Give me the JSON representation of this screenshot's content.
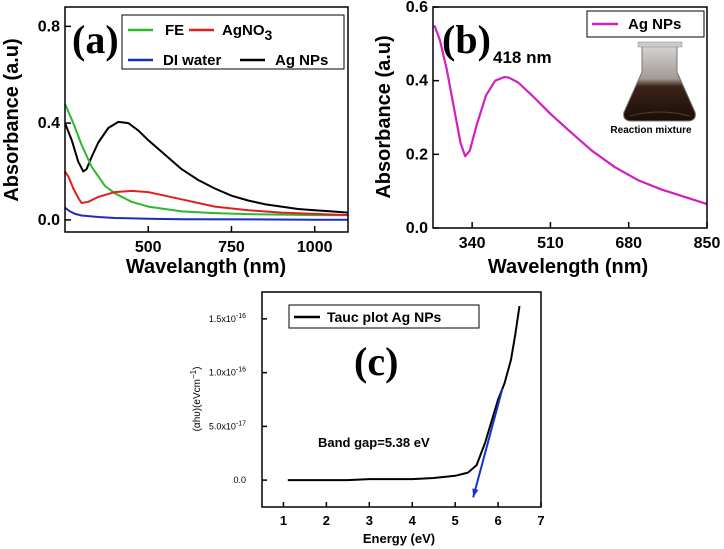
{
  "chart_data": [
    {
      "type": "line",
      "panel": "(a)",
      "xlabel": "Wavelangth (nm)",
      "ylabel": "Absorbance (a.u)",
      "xlim": [
        250,
        1100
      ],
      "ylim": [
        -0.05,
        0.88
      ],
      "x_ticks": [
        500,
        750,
        1000
      ],
      "y_ticks": [
        0.0,
        0.4,
        0.8
      ],
      "y_tick_labels": [
        "0.0",
        "0.4",
        "0.8"
      ],
      "legend": {
        "placement": "top-right",
        "columns": 2
      },
      "legend_entries": [
        {
          "name": "FE",
          "color": "#2db82d"
        },
        {
          "name": "AgNO",
          "sub": "3",
          "color": "#e02020"
        },
        {
          "name": "DI water",
          "color": "#1c2db8"
        },
        {
          "name": "Ag NPs",
          "color": "#000000"
        }
      ],
      "series": [
        {
          "name": "Ag NPs",
          "color": "#000000",
          "x": [
            250,
            270,
            290,
            305,
            315,
            330,
            350,
            380,
            410,
            440,
            470,
            500,
            550,
            600,
            650,
            700,
            750,
            800,
            850,
            900,
            950,
            1000,
            1050,
            1100
          ],
          "y": [
            0.4,
            0.33,
            0.24,
            0.2,
            0.21,
            0.26,
            0.32,
            0.38,
            0.405,
            0.4,
            0.37,
            0.33,
            0.27,
            0.21,
            0.165,
            0.13,
            0.1,
            0.08,
            0.065,
            0.055,
            0.045,
            0.04,
            0.035,
            0.03
          ]
        },
        {
          "name": "FE",
          "color": "#2db82d",
          "x": [
            250,
            275,
            300,
            330,
            370,
            400,
            450,
            500,
            550,
            600,
            700,
            800,
            900,
            1000,
            1100
          ],
          "y": [
            0.48,
            0.4,
            0.31,
            0.22,
            0.14,
            0.11,
            0.075,
            0.055,
            0.045,
            0.035,
            0.028,
            0.024,
            0.022,
            0.02,
            0.02
          ]
        },
        {
          "name": "AgNO3",
          "color": "#e02020",
          "x": [
            250,
            260,
            275,
            290,
            300,
            320,
            350,
            400,
            450,
            500,
            550,
            600,
            650,
            700,
            800,
            900,
            1000,
            1100
          ],
          "y": [
            0.2,
            0.18,
            0.13,
            0.09,
            0.07,
            0.075,
            0.095,
            0.115,
            0.12,
            0.115,
            0.1,
            0.085,
            0.07,
            0.055,
            0.04,
            0.03,
            0.025,
            0.02
          ]
        },
        {
          "name": "DI water",
          "color": "#1c2db8",
          "x": [
            250,
            265,
            280,
            300,
            350,
            400,
            500,
            600,
            800,
            1000,
            1100
          ],
          "y": [
            0.05,
            0.035,
            0.025,
            0.018,
            0.012,
            0.008,
            0.005,
            0.003,
            0.002,
            0.001,
            0.001
          ]
        }
      ]
    },
    {
      "type": "line",
      "panel": "(b)",
      "xlabel": "Wavelength (nm)",
      "ylabel": "Absorbance (a.u)",
      "xlim": [
        255,
        850
      ],
      "ylim": [
        0.0,
        0.6
      ],
      "x_ticks": [
        340,
        510,
        680,
        850
      ],
      "y_ticks": [
        0.0,
        0.2,
        0.4,
        0.6
      ],
      "y_tick_labels": [
        "0.0",
        "0.2",
        "0.4",
        "0.6"
      ],
      "annotation": "418 nm",
      "inset_caption": "Reaction mixture",
      "legend": {
        "placement": "top-right"
      },
      "legend_entries": [
        {
          "name": "Ag NPs",
          "color": "#d020c0"
        }
      ],
      "series": [
        {
          "name": "Ag NPs",
          "color": "#d020c0",
          "x": [
            258,
            270,
            285,
            300,
            315,
            325,
            335,
            350,
            370,
            390,
            410,
            420,
            440,
            470,
            510,
            550,
            600,
            650,
            700,
            750,
            800,
            850
          ],
          "y": [
            0.55,
            0.51,
            0.43,
            0.33,
            0.23,
            0.195,
            0.21,
            0.28,
            0.36,
            0.4,
            0.41,
            0.408,
            0.395,
            0.36,
            0.31,
            0.265,
            0.21,
            0.165,
            0.13,
            0.105,
            0.085,
            0.065
          ]
        }
      ]
    },
    {
      "type": "line",
      "panel": "(c)",
      "xlabel": "Energy (eV)",
      "ylabel_parts": [
        "(",
        "αhυ",
        ")(eVcm",
        "−1",
        ")"
      ],
      "xlim": [
        0.5,
        7.0
      ],
      "ylim": [
        -2.5e-17,
        1.75e-16
      ],
      "x_ticks": [
        1,
        2,
        3,
        4,
        5,
        6,
        7
      ],
      "y_ticks": [
        0.0,
        5e-17,
        1e-16,
        1.5e-16
      ],
      "y_tick_labels": [
        {
          "mantissa": "0.0",
          "exponent": ""
        },
        {
          "mantissa": "5.0x10",
          "exponent": "-17"
        },
        {
          "mantissa": "1.0x10",
          "exponent": "-16"
        },
        {
          "mantissa": "1.5x10",
          "exponent": "-16"
        }
      ],
      "annotation": "Band gap=5.38 eV",
      "legend": {
        "placement": "top-left"
      },
      "legend_entries": [
        {
          "name": "Tauc plot Ag NPs",
          "color": "#000000"
        }
      ],
      "series": [
        {
          "name": "Tauc plot Ag NPs",
          "color": "#000000",
          "x": [
            1.1,
            1.5,
            2.0,
            2.5,
            3.0,
            3.5,
            4.0,
            4.5,
            5.0,
            5.3,
            5.5,
            5.7,
            5.85,
            6.0,
            6.15,
            6.3,
            6.4,
            6.5
          ],
          "y": [
            0.0,
            0.0,
            0.0,
            0.0,
            1e-18,
            1e-18,
            1e-18,
            2e-18,
            4e-18,
            7e-18,
            1.4e-17,
            3.5e-17,
            5.5e-17,
            7.5e-17,
            9e-17,
            1.12e-16,
            1.35e-16,
            1.62e-16
          ]
        }
      ],
      "fit_line": {
        "color": "#1533c8",
        "x": [
          6.1,
          5.42
        ],
        "y": [
          8.5e-17,
          -1.6e-17
        ]
      }
    }
  ]
}
